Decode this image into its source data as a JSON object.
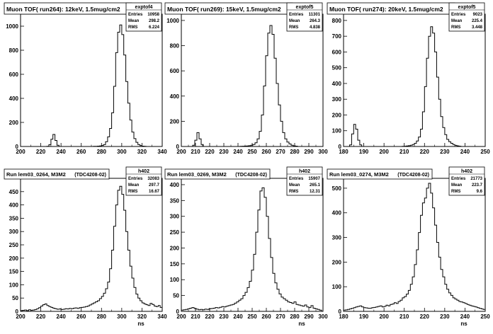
{
  "colors": {
    "background": "#ffffff",
    "ink": "#000000",
    "box": "#ffffff"
  },
  "chart_data": [
    {
      "type": "bar",
      "subtype": "histogram",
      "title": "Muon TOF( run264): 12keV, 1.5mug/cm2",
      "stats": {
        "name": "exptof4",
        "rows": [
          [
            "Entries",
            "10958"
          ],
          [
            "Mean",
            "298.2"
          ],
          [
            "RMS",
            "6.224"
          ]
        ]
      },
      "xlabel": "",
      "ylabel": "",
      "xlim": [
        200,
        340
      ],
      "ylim": [
        0,
        1100
      ],
      "xticks": [
        "200",
        "220",
        "240",
        "260",
        "280",
        "300",
        "320",
        "340"
      ],
      "yticks": [
        "0",
        "200",
        "400",
        "600",
        "800",
        "1000"
      ],
      "bin_width": 2,
      "x": [
        226,
        228,
        230,
        232,
        234,
        236,
        270,
        272,
        274,
        276,
        278,
        280,
        282,
        284,
        286,
        288,
        290,
        292,
        294,
        296,
        298,
        300,
        302,
        304,
        306,
        308,
        310,
        312,
        314,
        316,
        318,
        320,
        322,
        324
      ],
      "values": [
        2,
        15,
        60,
        100,
        50,
        10,
        0,
        1,
        2,
        3,
        5,
        8,
        15,
        40,
        80,
        150,
        280,
        500,
        780,
        950,
        1010,
        930,
        760,
        540,
        360,
        220,
        120,
        65,
        35,
        15,
        7,
        3,
        2,
        0
      ]
    },
    {
      "type": "bar",
      "subtype": "histogram",
      "title": "Muon TOF( run269): 15keV, 1.5mug/cm2",
      "stats": {
        "name": "exptof5",
        "rows": [
          [
            "Entries",
            "11301"
          ],
          [
            "Mean",
            "264.3"
          ],
          [
            "RMS",
            "4.838"
          ]
        ]
      },
      "xlabel": "",
      "ylabel": "",
      "xlim": [
        200,
        300
      ],
      "ylim": [
        0,
        1050
      ],
      "xticks": [
        "200",
        "210",
        "220",
        "230",
        "240",
        "250",
        "260",
        "270",
        "280",
        "290",
        "300"
      ],
      "yticks": [
        "0",
        "200",
        "400",
        "600",
        "800",
        "1000"
      ],
      "bin_width": 1.5,
      "x": [
        208,
        209.5,
        211,
        212.5,
        214,
        240,
        241.5,
        243,
        244.5,
        246,
        247.5,
        249,
        250.5,
        252,
        253.5,
        255,
        256.5,
        258,
        259.5,
        261,
        262.5,
        264,
        265.5,
        267,
        268.5,
        270,
        271.5,
        273,
        274.5,
        276,
        277.5,
        279,
        280.5,
        282
      ],
      "values": [
        10,
        50,
        110,
        60,
        15,
        0,
        1,
        2,
        3,
        4,
        6,
        10,
        16,
        30,
        60,
        120,
        250,
        480,
        720,
        900,
        960,
        890,
        700,
        500,
        330,
        200,
        110,
        60,
        35,
        20,
        10,
        5,
        3,
        0
      ]
    },
    {
      "type": "bar",
      "subtype": "histogram",
      "title": "Muon TOF( run274): 20keV, 1.5mug/cm2",
      "stats": {
        "name": "exptof5",
        "rows": [
          [
            "Entries",
            "9023"
          ],
          [
            "Mean",
            "225.4"
          ],
          [
            "RMS",
            "3.448"
          ]
        ]
      },
      "xlabel": "",
      "ylabel": "",
      "xlim": [
        180,
        250
      ],
      "ylim": [
        0,
        840
      ],
      "xticks": [
        "180",
        "190",
        "200",
        "210",
        "220",
        "230",
        "240",
        "250"
      ],
      "yticks": [
        "0",
        "100",
        "200",
        "300",
        "400",
        "500",
        "600",
        "700",
        "800"
      ],
      "bin_width": 1,
      "x": [
        183,
        184,
        185,
        186,
        187,
        188,
        208,
        209,
        210,
        211,
        212,
        213,
        214,
        215,
        216,
        217,
        218,
        219,
        220,
        221,
        222,
        223,
        224,
        225,
        226,
        227,
        228,
        229,
        230,
        231,
        232,
        233,
        234,
        235,
        236,
        237,
        238
      ],
      "values": [
        10,
        80,
        140,
        110,
        40,
        10,
        0,
        1,
        2,
        3,
        5,
        8,
        12,
        20,
        35,
        60,
        110,
        220,
        380,
        560,
        700,
        760,
        720,
        600,
        440,
        300,
        190,
        120,
        75,
        45,
        30,
        20,
        12,
        7,
        4,
        2,
        0
      ]
    },
    {
      "type": "bar",
      "subtype": "histogram",
      "title": "Run lem03_0264, M3M2",
      "tag": "(TDC4208-02)",
      "stats": {
        "name": "h402",
        "rows": [
          [
            "Entries",
            "32083"
          ],
          [
            "Mean",
            "297.7"
          ],
          [
            "RMS",
            "16.67"
          ]
        ]
      },
      "xlabel": "ns",
      "ylabel": "",
      "xlim": [
        200,
        340
      ],
      "ylim": [
        0,
        500
      ],
      "xticks": [
        "200",
        "220",
        "240",
        "260",
        "280",
        "300",
        "320",
        "340"
      ],
      "yticks": [
        "0",
        "50",
        "100",
        "150",
        "200",
        "250",
        "300",
        "350",
        "400",
        "450"
      ],
      "bin_width": 2,
      "x": [
        200,
        202,
        204,
        206,
        208,
        210,
        212,
        214,
        216,
        218,
        220,
        222,
        224,
        226,
        228,
        230,
        232,
        234,
        236,
        238,
        240,
        242,
        244,
        246,
        248,
        250,
        252,
        254,
        256,
        258,
        260,
        262,
        264,
        266,
        268,
        270,
        272,
        274,
        276,
        278,
        280,
        282,
        284,
        286,
        288,
        290,
        292,
        294,
        296,
        298,
        300,
        302,
        304,
        306,
        308,
        310,
        312,
        314,
        316,
        318,
        320,
        322,
        324,
        326,
        328,
        330,
        332,
        334,
        336,
        338
      ],
      "values": [
        3,
        4,
        5,
        3,
        6,
        4,
        5,
        7,
        10,
        14,
        20,
        25,
        28,
        22,
        18,
        15,
        12,
        10,
        8,
        9,
        7,
        8,
        10,
        9,
        11,
        10,
        12,
        13,
        11,
        14,
        15,
        16,
        18,
        20,
        24,
        28,
        32,
        36,
        40,
        48,
        56,
        68,
        85,
        110,
        160,
        230,
        320,
        400,
        455,
        470,
        440,
        380,
        300,
        230,
        170,
        125,
        90,
        65,
        50,
        40,
        32,
        28,
        25,
        22,
        30,
        26,
        20,
        18,
        22,
        15
      ]
    },
    {
      "type": "bar",
      "subtype": "histogram",
      "title": "Run lem03_0269, M3M2",
      "tag": "(TDC4208-02)",
      "stats": {
        "name": "h402",
        "rows": [
          [
            "Entries",
            "15907"
          ],
          [
            "Mean",
            "265.1"
          ],
          [
            "RMS",
            "12.31"
          ]
        ]
      },
      "xlabel": "ns",
      "ylabel": "",
      "xlim": [
        200,
        300
      ],
      "ylim": [
        0,
        420
      ],
      "xticks": [
        "200",
        "210",
        "220",
        "230",
        "240",
        "250",
        "260",
        "270",
        "280",
        "290",
        "300"
      ],
      "yticks": [
        "0",
        "50",
        "100",
        "150",
        "200",
        "250",
        "300",
        "350",
        "400"
      ],
      "bin_width": 1.5,
      "x": [
        200,
        201.5,
        203,
        204.5,
        206,
        207.5,
        209,
        210.5,
        212,
        213.5,
        215,
        216.5,
        218,
        219.5,
        221,
        222.5,
        224,
        225.5,
        227,
        228.5,
        230,
        231.5,
        233,
        234.5,
        236,
        237.5,
        239,
        240.5,
        242,
        243.5,
        245,
        246.5,
        248,
        249.5,
        251,
        252.5,
        254,
        255.5,
        257,
        258.5,
        260,
        261.5,
        263,
        264.5,
        266,
        267.5,
        269,
        270.5,
        272,
        273.5,
        275,
        276.5,
        278,
        279.5,
        281,
        282.5,
        284,
        285.5,
        287,
        288.5,
        290,
        291.5,
        293,
        294.5,
        296,
        297.5
      ],
      "values": [
        4,
        5,
        6,
        8,
        10,
        12,
        9,
        7,
        5,
        6,
        5,
        7,
        6,
        8,
        9,
        10,
        12,
        11,
        13,
        15,
        14,
        16,
        18,
        20,
        22,
        26,
        30,
        35,
        40,
        50,
        60,
        75,
        95,
        130,
        180,
        250,
        320,
        380,
        390,
        360,
        300,
        230,
        170,
        120,
        90,
        70,
        55,
        45,
        40,
        35,
        30,
        28,
        25,
        30,
        22,
        20,
        18,
        16,
        20,
        14,
        12,
        18,
        10,
        8,
        6,
        4
      ]
    },
    {
      "type": "bar",
      "subtype": "histogram",
      "title": "Run lem03_0274, M3M2",
      "tag": "(TDC4208-02)",
      "stats": {
        "name": "h402",
        "rows": [
          [
            "Entries",
            "21773"
          ],
          [
            "Mean",
            "223.7"
          ],
          [
            "RMS",
            "9.6"
          ]
        ]
      },
      "xlabel": "ns",
      "ylabel": "",
      "xlim": [
        180,
        250
      ],
      "ylim": [
        0,
        540
      ],
      "xticks": [
        "180",
        "190",
        "200",
        "210",
        "220",
        "230",
        "240",
        "250"
      ],
      "yticks": [
        "0",
        "100",
        "200",
        "300",
        "400",
        "500"
      ],
      "bin_width": 1,
      "x": [
        180,
        181,
        182,
        183,
        184,
        185,
        186,
        187,
        188,
        189,
        190,
        191,
        192,
        193,
        194,
        195,
        196,
        197,
        198,
        199,
        200,
        201,
        202,
        203,
        204,
        205,
        206,
        207,
        208,
        209,
        210,
        211,
        212,
        213,
        214,
        215,
        216,
        217,
        218,
        219,
        220,
        221,
        222,
        223,
        224,
        225,
        226,
        227,
        228,
        229,
        230,
        231,
        232,
        233,
        234,
        235,
        236,
        237,
        238,
        239,
        240,
        241,
        242,
        243,
        244,
        245,
        246,
        247,
        248,
        249
      ],
      "values": [
        5,
        6,
        8,
        10,
        12,
        15,
        18,
        20,
        22,
        18,
        15,
        14,
        12,
        13,
        15,
        16,
        18,
        20,
        22,
        18,
        20,
        25,
        22,
        28,
        30,
        35,
        32,
        40,
        45,
        55,
        60,
        70,
        85,
        110,
        140,
        190,
        250,
        320,
        390,
        440,
        460,
        500,
        520,
        480,
        420,
        350,
        280,
        220,
        170,
        140,
        110,
        90,
        75,
        65,
        55,
        50,
        45,
        40,
        38,
        35,
        32,
        28,
        25,
        22,
        20,
        18,
        15,
        12,
        10,
        8
      ]
    }
  ]
}
